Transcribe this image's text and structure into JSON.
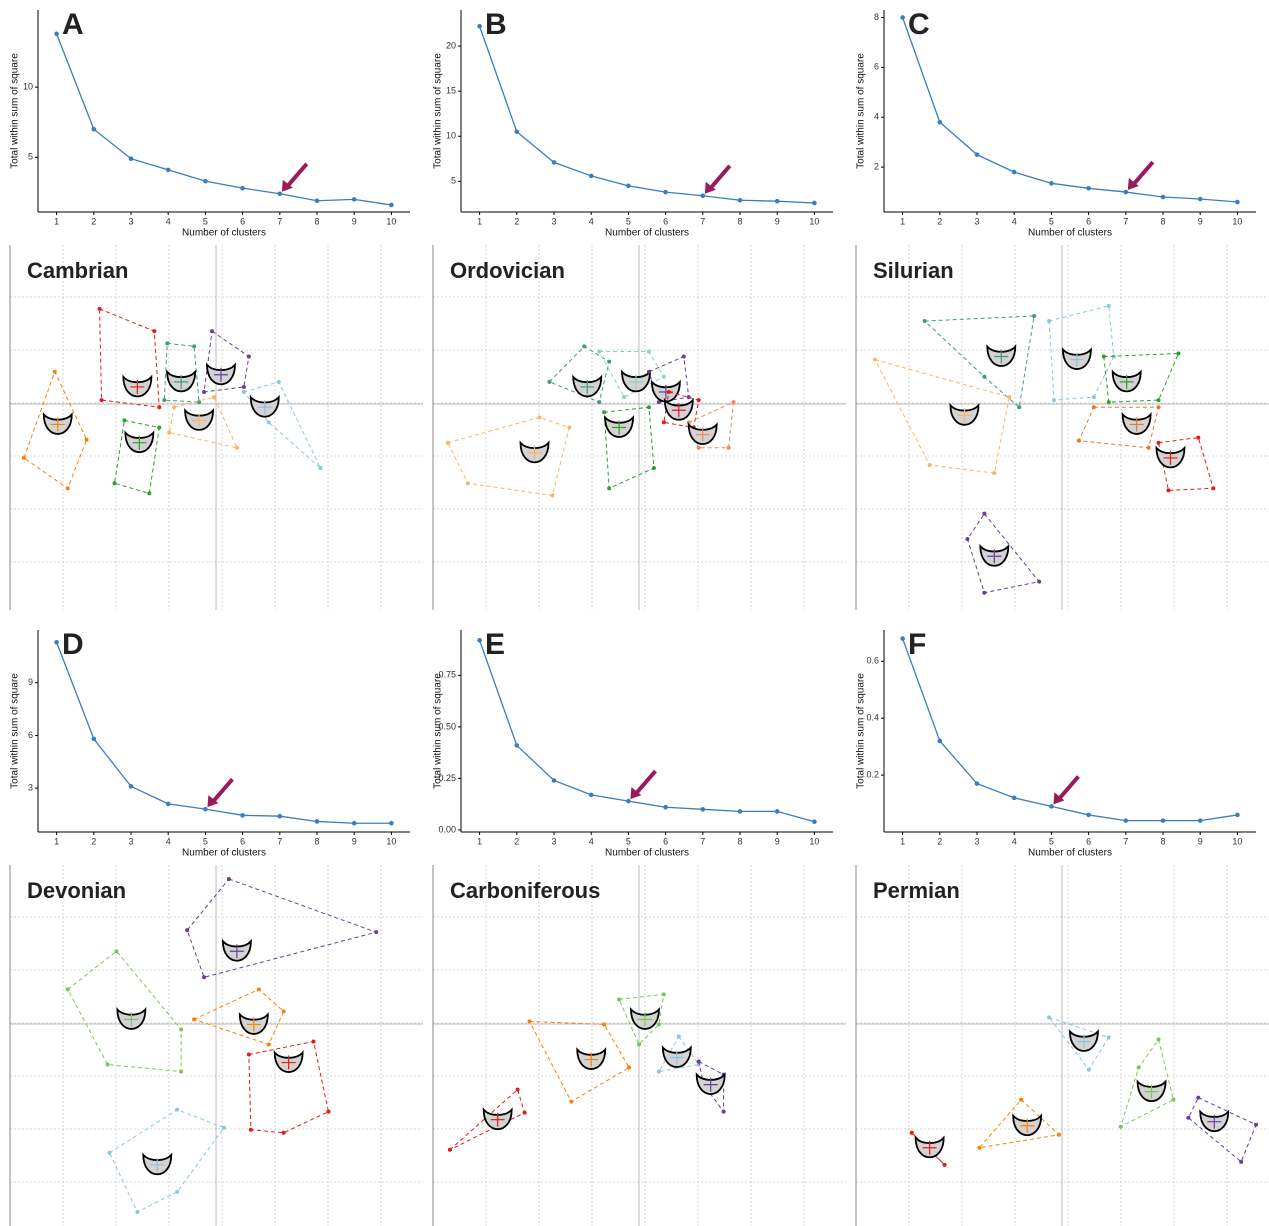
{
  "chart_data": [
    {
      "type": "line",
      "title": "A",
      "xlabel": "Number of clusters",
      "ylabel": "Total within sum of square",
      "color": "#3b7dbf",
      "x": [
        1,
        2,
        3,
        4,
        5,
        6,
        7,
        8,
        9,
        10
      ],
      "values": [
        13.8,
        7.0,
        4.9,
        4.1,
        3.3,
        2.8,
        2.4,
        1.9,
        2.0,
        1.6
      ],
      "xlim": [
        0.5,
        10.5
      ],
      "xticks": [
        1,
        2,
        3,
        4,
        5,
        6,
        7,
        8,
        9,
        10
      ],
      "ylim": [
        1.1,
        15.5
      ],
      "yticks": [
        5,
        10
      ],
      "highlight": 7,
      "highlight_color": "#9b1b5a"
    },
    {
      "type": "line",
      "title": "B",
      "xlabel": "Number of clusters",
      "ylabel": "Total within sum of square",
      "color": "#3b7dbf",
      "x": [
        1,
        2,
        3,
        4,
        5,
        6,
        7,
        8,
        9,
        10
      ],
      "values": [
        22.2,
        10.5,
        7.1,
        5.6,
        4.5,
        3.8,
        3.4,
        2.9,
        2.8,
        2.6
      ],
      "xlim": [
        0.5,
        10.5
      ],
      "xticks": [
        1,
        2,
        3,
        4,
        5,
        6,
        7,
        8,
        9,
        10
      ],
      "ylim": [
        1.6,
        24
      ],
      "yticks": [
        5,
        10,
        15,
        20
      ],
      "highlight": 7,
      "highlight_color": "#9b1b5a"
    },
    {
      "type": "line",
      "title": "C",
      "xlabel": "Number of clusters",
      "ylabel": "Total within sum of square",
      "color": "#3b7dbf",
      "x": [
        1,
        2,
        3,
        4,
        5,
        6,
        7,
        8,
        9,
        10
      ],
      "values": [
        8.0,
        3.8,
        2.5,
        1.8,
        1.35,
        1.15,
        1.0,
        0.8,
        0.72,
        0.6
      ],
      "xlim": [
        0.5,
        10.5
      ],
      "xticks": [
        1,
        2,
        3,
        4,
        5,
        6,
        7,
        8,
        9,
        10
      ],
      "ylim": [
        0.2,
        8.3
      ],
      "yticks": [
        2,
        4,
        6,
        8
      ],
      "highlight": 7,
      "highlight_color": "#9b1b5a"
    },
    {
      "type": "scatter",
      "title": "Cambrian",
      "xlim": [
        0,
        8.3
      ],
      "ylim": [
        0,
        7.2
      ],
      "grid": true,
      "series": [
        {
          "color": "#ff7f00",
          "x": [
            0.28,
            0.9,
            1.54,
            1.16
          ],
          "values": [
            3.0,
            4.7,
            3.36,
            2.4
          ],
          "center": [
            0.96,
            3.66
          ]
        },
        {
          "color": "#e41a1c",
          "x": [
            1.8,
            2.9,
            3.0,
            1.84
          ],
          "values": [
            5.94,
            5.5,
            4.0,
            4.14
          ],
          "center": [
            2.56,
            4.4
          ]
        },
        {
          "color": "#3f9b7b",
          "x": [
            3.16,
            3.7,
            3.8,
            3.1
          ],
          "values": [
            5.26,
            5.2,
            4.1,
            4.14
          ],
          "center": [
            3.44,
            4.5
          ]
        },
        {
          "color": "#6a3d9a",
          "x": [
            4.06,
            4.8,
            4.7,
            3.9
          ],
          "values": [
            5.5,
            5.0,
            4.4,
            4.3
          ],
          "center": [
            4.24,
            4.64
          ]
        },
        {
          "color": "#8ec5de",
          "x": [
            4.7,
            5.4,
            6.24,
            5.2
          ],
          "values": [
            4.3,
            4.5,
            2.8,
            3.7
          ],
          "center": [
            5.12,
            4.0
          ]
        },
        {
          "color": "#fdb462",
          "x": [
            3.3,
            4.1,
            4.56,
            3.2
          ],
          "values": [
            4.0,
            4.2,
            3.2,
            3.5
          ],
          "center": [
            3.8,
            3.74
          ]
        },
        {
          "color": "#2ca02c",
          "x": [
            2.3,
            3.0,
            2.8,
            2.1
          ],
          "values": [
            3.74,
            3.6,
            2.3,
            2.5
          ],
          "center": [
            2.6,
            3.3
          ]
        }
      ]
    },
    {
      "type": "scatter",
      "title": "Ordovician",
      "xlim": [
        0,
        8.3
      ],
      "ylim": [
        0,
        7.2
      ],
      "grid": true,
      "series": [
        {
          "color": "#fdb462",
          "x": [
            0.3,
            2.14,
            2.74,
            2.4,
            0.7
          ],
          "values": [
            3.3,
            3.8,
            3.6,
            2.26,
            2.5
          ],
          "center": [
            2.04,
            3.1
          ]
        },
        {
          "color": "#2ca02c",
          "x": [
            3.44,
            4.34,
            4.44,
            3.54
          ],
          "values": [
            3.9,
            4.0,
            2.8,
            2.4
          ],
          "center": [
            3.74,
            3.6
          ]
        },
        {
          "color": "#3f9b7b",
          "x": [
            2.34,
            3.04,
            3.54,
            3.34
          ],
          "values": [
            4.5,
            5.2,
            4.9,
            4.1
          ],
          "center": [
            3.1,
            4.4
          ]
        },
        {
          "color": "#8fcfc4",
          "x": [
            3.34,
            4.34,
            4.64,
            3.84
          ],
          "values": [
            5.1,
            5.1,
            4.6,
            4.2
          ],
          "center": [
            4.08,
            4.5
          ]
        },
        {
          "color": "#6a3d9a",
          "x": [
            4.34,
            5.04,
            5.14,
            4.54
          ],
          "values": [
            4.7,
            5.0,
            4.2,
            4.1
          ],
          "center": [
            4.68,
            4.3
          ]
        },
        {
          "color": "#e41a1c",
          "x": [
            4.74,
            5.34,
            5.24,
            4.64
          ],
          "values": [
            4.3,
            4.14,
            3.6,
            3.7
          ],
          "center": [
            4.94,
            3.94
          ]
        },
        {
          "color": "#f08a5d",
          "x": [
            5.14,
            6.04,
            5.94,
            5.34
          ],
          "values": [
            3.7,
            4.1,
            3.2,
            3.2
          ],
          "center": [
            5.42,
            3.46
          ]
        }
      ]
    },
    {
      "type": "scatter",
      "title": "Silurian",
      "xlim": [
        0,
        8.3
      ],
      "ylim": [
        0,
        7.2
      ],
      "grid": true,
      "series": [
        {
          "color": "#3f9b7b",
          "x": [
            1.38,
            3.58,
            3.28,
            2.58
          ],
          "values": [
            5.7,
            5.8,
            4.0,
            4.6
          ],
          "center": [
            2.92,
            5.0
          ]
        },
        {
          "color": "#8ec5de",
          "x": [
            3.88,
            5.08,
            5.18,
            4.78,
            3.98
          ],
          "values": [
            5.7,
            6.0,
            5.0,
            4.2,
            4.14
          ],
          "center": [
            4.44,
            4.94
          ]
        },
        {
          "color": "#2ca02c",
          "x": [
            4.98,
            6.48,
            6.08,
            5.08
          ],
          "values": [
            5.0,
            5.06,
            4.14,
            4.1
          ],
          "center": [
            5.44,
            4.5
          ]
        },
        {
          "color": "#fdb462",
          "x": [
            0.38,
            3.08,
            2.78,
            1.48
          ],
          "values": [
            4.94,
            4.2,
            2.7,
            2.86
          ],
          "center": [
            2.18,
            3.84
          ]
        },
        {
          "color": "#e6782e",
          "x": [
            4.78,
            6.08,
            5.88,
            4.48
          ],
          "values": [
            4.0,
            4.0,
            3.2,
            3.34
          ],
          "center": [
            5.64,
            3.66
          ]
        },
        {
          "color": "#e41a1c",
          "x": [
            6.08,
            6.88,
            7.18,
            6.28
          ],
          "values": [
            3.3,
            3.4,
            2.4,
            2.36
          ],
          "center": [
            6.32,
            3.0
          ]
        },
        {
          "color": "#6a3d9a",
          "x": [
            2.58,
            3.68,
            2.58,
            2.24
          ],
          "values": [
            1.9,
            0.56,
            0.34,
            1.4
          ],
          "center": [
            2.78,
            1.06
          ]
        }
      ]
    },
    {
      "type": "line",
      "title": "D",
      "xlabel": "Number of clusters",
      "ylabel": "Total within sum of square",
      "color": "#3b7dbf",
      "x": [
        1,
        2,
        3,
        4,
        5,
        6,
        7,
        8,
        9,
        10
      ],
      "values": [
        11.3,
        5.8,
        3.1,
        2.1,
        1.8,
        1.45,
        1.4,
        1.1,
        1.0,
        1.0
      ],
      "xlim": [
        0.5,
        10.5
      ],
      "xticks": [
        1,
        2,
        3,
        4,
        5,
        6,
        7,
        8,
        9,
        10
      ],
      "ylim": [
        0.5,
        12
      ],
      "yticks": [
        3,
        6,
        9
      ],
      "highlight": 5,
      "highlight_color": "#9b1b5a"
    },
    {
      "type": "line",
      "title": "E",
      "xlabel": "Number of clusters",
      "ylabel": "Total within sum of square",
      "color": "#3b7dbf",
      "x": [
        1,
        2,
        3,
        4,
        5,
        6,
        7,
        8,
        9,
        10
      ],
      "values": [
        0.92,
        0.41,
        0.24,
        0.17,
        0.14,
        0.11,
        0.1,
        0.09,
        0.09,
        0.04
      ],
      "xlim": [
        0.5,
        10.5
      ],
      "xticks": [
        1,
        2,
        3,
        4,
        5,
        6,
        7,
        8,
        9,
        10
      ],
      "ylim": [
        -0.01,
        0.97
      ],
      "yticks": [
        {
          "value": 0,
          "label": "0.00"
        },
        0.25,
        {
          "value": 0.5,
          "label": "0.50"
        },
        0.75
      ],
      "highlight": 5,
      "highlight_color": "#9b1b5a"
    },
    {
      "type": "line",
      "title": "F",
      "xlabel": "Number of clusters",
      "ylabel": "Total within sum of square",
      "color": "#3b7dbf",
      "x": [
        1,
        2,
        3,
        4,
        5,
        6,
        7,
        8,
        9,
        10
      ],
      "values": [
        0.68,
        0.32,
        0.17,
        0.12,
        0.09,
        0.06,
        0.04,
        0.04,
        0.04,
        0.06
      ],
      "xlim": [
        0.5,
        10.5
      ],
      "xticks": [
        1,
        2,
        3,
        4,
        5,
        6,
        7,
        8,
        9,
        10
      ],
      "ylim": [
        0.0,
        0.71
      ],
      "yticks": [
        0.2,
        0.4,
        0.6
      ],
      "highlight": 5,
      "highlight_color": "#9b1b5a"
    },
    {
      "type": "scatter",
      "title": "Devonian",
      "xlim": [
        0,
        8.3
      ],
      "ylim": [
        0,
        7.2
      ],
      "grid": true,
      "series": [
        {
          "color": "#6a3d9a",
          "x": [
            4.4,
            7.36,
            3.9,
            3.56
          ],
          "values": [
            6.92,
            5.86,
            4.96,
            5.9
          ],
          "center": [
            4.56,
            5.48
          ]
        },
        {
          "color": "#7dc45a",
          "x": [
            1.16,
            2.14,
            3.44,
            3.44,
            1.96
          ],
          "values": [
            4.72,
            5.48,
            3.92,
            3.08,
            3.22
          ],
          "center": [
            2.44,
            4.12
          ]
        },
        {
          "color": "#ff7f00",
          "x": [
            3.7,
            5.0,
            5.5,
            5.2
          ],
          "values": [
            4.12,
            4.72,
            4.28,
            3.62
          ],
          "center": [
            4.9,
            4.02
          ]
        },
        {
          "color": "#e41a1c",
          "x": [
            4.8,
            6.1,
            6.4,
            5.5,
            4.84
          ],
          "values": [
            3.42,
            3.68,
            2.28,
            1.86,
            1.92
          ],
          "center": [
            5.6,
            3.26
          ]
        },
        {
          "color": "#8ec5de",
          "x": [
            2.0,
            3.36,
            4.3,
            3.36,
            2.56
          ],
          "values": [
            1.46,
            2.32,
            1.96,
            0.68,
            0.28
          ],
          "center": [
            2.96,
            1.22
          ]
        }
      ]
    },
    {
      "type": "scatter",
      "title": "Carboniferous",
      "xlim": [
        0,
        8.3
      ],
      "ylim": [
        0,
        7.2
      ],
      "grid": true,
      "series": [
        {
          "color": "#e41a1c",
          "x": [
            0.34,
            1.7,
            1.84
          ],
          "values": [
            1.52,
            2.72,
            2.26
          ],
          "center": [
            1.3,
            2.12
          ]
        },
        {
          "color": "#ff7f00",
          "x": [
            1.94,
            3.44,
            3.94,
            2.78
          ],
          "values": [
            4.08,
            4.02,
            3.16,
            2.48
          ],
          "center": [
            3.18,
            3.32
          ]
        },
        {
          "color": "#7dc45a",
          "x": [
            3.74,
            4.64,
            4.54,
            4.14
          ],
          "values": [
            4.52,
            4.62,
            4.02,
            3.62
          ],
          "center": [
            4.26,
            4.12
          ]
        },
        {
          "color": "#8ec5de",
          "x": [
            4.94,
            5.34,
            4.54
          ],
          "values": [
            3.78,
            3.22,
            3.08
          ],
          "center": [
            4.9,
            3.36
          ]
        },
        {
          "color": "#6a3d9a",
          "x": [
            5.34,
            5.84,
            5.84,
            5.44
          ],
          "values": [
            3.28,
            3.02,
            2.28,
            2.82
          ],
          "center": [
            5.58,
            2.82
          ]
        }
      ]
    },
    {
      "type": "scatter",
      "title": "Permian",
      "xlim": [
        0,
        8.3
      ],
      "ylim": [
        0,
        7.2
      ],
      "grid": true,
      "series": [
        {
          "color": "#8ec5de",
          "x": [
            3.88,
            5.08,
            4.68
          ],
          "values": [
            4.16,
            3.76,
            3.12
          ],
          "center": [
            4.58,
            3.68
          ]
        },
        {
          "color": "#7dc45a",
          "x": [
            6.08,
            6.38,
            5.32,
            5.68
          ],
          "values": [
            3.72,
            2.52,
            1.98,
            3.16
          ],
          "center": [
            5.94,
            2.68
          ]
        },
        {
          "color": "#6a3d9a",
          "x": [
            6.88,
            8.04,
            7.74,
            6.68
          ],
          "values": [
            2.56,
            2.02,
            1.28,
            2.16
          ],
          "center": [
            7.2,
            2.08
          ]
        },
        {
          "color": "#ff7f00",
          "x": [
            3.32,
            4.08,
            2.48
          ],
          "values": [
            2.52,
            1.82,
            1.56
          ],
          "center": [
            3.44,
            2.0
          ]
        },
        {
          "color": "#e41a1c",
          "x": [
            1.12,
            1.78
          ],
          "values": [
            1.86,
            1.22
          ],
          "center": [
            1.48,
            1.56
          ]
        }
      ]
    }
  ]
}
